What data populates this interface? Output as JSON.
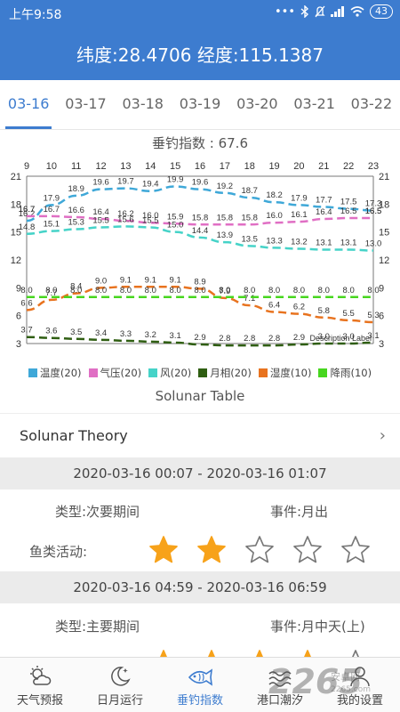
{
  "status_bar": {
    "time": "上午9:58",
    "icons": [
      "dots-icon",
      "bluetooth-icon",
      "mute-icon",
      "signal-icon",
      "wifi-icon"
    ],
    "battery": "43"
  },
  "header": {
    "coordinates": "纬度:28.4706 经度:115.1387"
  },
  "date_tabs": [
    "03-16",
    "03-17",
    "03-18",
    "03-19",
    "03-20",
    "03-21",
    "03-22"
  ],
  "active_tab": 0,
  "chart_data": {
    "type": "line",
    "title": "垂钓指数 : 67.6",
    "x": [
      9,
      10,
      11,
      12,
      13,
      14,
      15,
      16,
      17,
      18,
      19,
      20,
      21,
      22,
      23
    ],
    "ylim": [
      3,
      21
    ],
    "y_ticks": [
      3,
      6,
      9,
      12,
      15,
      18,
      21
    ],
    "annotation": "Description Label",
    "series": [
      {
        "name": "温度(20)",
        "color": "#3fa8d8",
        "values": [
          16.2,
          17.9,
          18.9,
          19.6,
          19.7,
          19.4,
          19.9,
          19.6,
          19.2,
          18.7,
          18.2,
          17.9,
          17.7,
          17.5,
          17.3
        ],
        "extra_labels": [
          {
            "x": 9,
            "y": 16.7
          },
          {
            "x": 23,
            "y": 16.5
          }
        ]
      },
      {
        "name": "气压(20)",
        "color": "#e06fc4",
        "values": [
          16.7,
          16.7,
          16.6,
          16.4,
          16.2,
          16.0,
          15.9,
          15.8,
          15.8,
          15.8,
          16.0,
          16.1,
          16.4,
          16.5,
          16.5
        ]
      },
      {
        "name": "风(20)",
        "color": "#46d3c8",
        "values": [
          14.8,
          15.1,
          15.3,
          15.5,
          15.6,
          15.5,
          15.0,
          14.4,
          13.9,
          13.5,
          13.3,
          13.2,
          13.1,
          13.1,
          13.0
        ]
      },
      {
        "name": "月相(20)",
        "color": "#2f5e12",
        "values": [
          3.7,
          3.6,
          3.5,
          3.4,
          3.3,
          3.2,
          3.1,
          2.9,
          2.8,
          2.8,
          2.8,
          2.9,
          3.0,
          3.0,
          3.1
        ]
      },
      {
        "name": "湿度(10)",
        "color": "#e8731f",
        "values": [
          6.6,
          7.7,
          8.4,
          9.0,
          9.1,
          9.1,
          9.1,
          8.9,
          7.9,
          7.1,
          6.4,
          6.2,
          5.8,
          5.5,
          5.3
        ]
      },
      {
        "name": "降雨(10)",
        "color": "#47d61f",
        "values": [
          8.0,
          8.0,
          8.0,
          8.0,
          8.0,
          8.0,
          8.0,
          8.0,
          8.0,
          8.0,
          8.0,
          8.0,
          8.0,
          8.0,
          8.0
        ]
      }
    ],
    "legend_position": "bottom"
  },
  "solunar": {
    "title": "Solunar Table",
    "theory_label": "Solunar Theory"
  },
  "periods": [
    {
      "time_range": "2020-03-16 00:07 - 2020-03-16 01:07",
      "type": "类型:次要期间",
      "event": "事件:月出",
      "fish_label": "鱼类活动:",
      "stars": 2
    },
    {
      "time_range": "2020-03-16 04:59 - 2020-03-16 06:59",
      "type": "类型:主要期间",
      "event": "事件:月中天(上)",
      "fish_label": "鱼类活动:",
      "stars": 4
    }
  ],
  "bottom_nav": [
    {
      "label": "天气预报",
      "icon": "weather-icon"
    },
    {
      "label": "日月运行",
      "icon": "moon-icon"
    },
    {
      "label": "垂钓指数",
      "icon": "fish-icon"
    },
    {
      "label": "港口潮汐",
      "icon": "tide-icon"
    },
    {
      "label": "我的设置",
      "icon": "user-icon"
    }
  ],
  "watermark": {
    "text": "2265",
    "sub": "安卓网",
    "sub2": "2265.com"
  }
}
